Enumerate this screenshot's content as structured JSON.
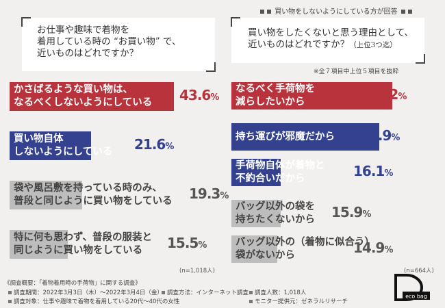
{
  "left": {
    "question_lines": [
      "お仕事や趣味で着物を",
      "着用している時の “お買い物” で、",
      "近いものはどれですか？"
    ],
    "n_label": "(n=1,018人)"
  },
  "right": {
    "banner": "買い物をしないようにしている方が回答",
    "question_lines": [
      "買い物をしたくないと思う理由として、",
      "近いものはどれですか？"
    ],
    "question_suffix": "（上位3つ迄）",
    "note": "※全７項目中上位５項目を抜粋",
    "n_label": "(n=664人)"
  },
  "colors": {
    "red": "#b8333b",
    "navy": "#34418f",
    "gray": "#bdbdbd",
    "bg": "#f1f0ee"
  },
  "chart_data": [
    {
      "type": "bar",
      "categories": [
        "かさばるような買い物は、なるべくしないようにしている",
        "買い物自体しないようにしている",
        "袋や風呂敷を持っている時のみ、普段と同じように買い物をしている",
        "特に何も思わず、普段の服装と同じように買い物をしている"
      ],
      "label_lines": [
        [
          "かさばるような買い物は、",
          "なるべくしないようにしている"
        ],
        [
          "買い物自体",
          "しないようにしている"
        ],
        [
          "袋や風呂敷を持っている時のみ、",
          "普段と同じように買い物をしている"
        ],
        [
          "特に何も思わず、普段の服装と",
          "同じように買い物をしている"
        ]
      ],
      "values": [
        43.6,
        21.6,
        19.3,
        15.5
      ],
      "value_labels": [
        "43.6",
        "21.6",
        "19.3",
        "15.5"
      ],
      "unit": "%",
      "bar_colors": [
        "#b8333b",
        "#34418f",
        "#bdbdbd",
        "#bdbdbd"
      ],
      "value_colors": [
        "#b8333b",
        "#34418f",
        "#555555",
        "#555555"
      ]
    },
    {
      "type": "bar",
      "categories": [
        "なるべく手荷物を減らしたいから",
        "持ち運びが邪魔だから",
        "手荷物自体が着物と不釣合いだから",
        "バッグ以外の袋を持ちたくないから",
        "バッグ以外の（着物に似合う）袋がないから"
      ],
      "label_lines": [
        [
          "なるべく手荷物を",
          "減らしたいから"
        ],
        [
          "持ち運びが邪魔だから"
        ],
        [
          "手荷物自体が着物と",
          "不釣合いだから"
        ],
        [
          "バッグ以外の袋を",
          "持ちたくないから"
        ],
        [
          "バッグ以外の（着物に似合う）",
          "袋がないから"
        ]
      ],
      "values": [
        52.2,
        47.9,
        16.1,
        15.9,
        14.9
      ],
      "value_labels": [
        "52.2",
        "47.9",
        "16.1",
        "15.9",
        "14.9"
      ],
      "unit": "%",
      "bar_colors": [
        "#b8333b",
        "#34418f",
        "#34418f",
        "#bdbdbd",
        "#bdbdbd"
      ],
      "value_colors": [
        "#b8333b",
        "#34418f",
        "#34418f",
        "#555555",
        "#555555"
      ]
    }
  ],
  "footer": {
    "title": "《調査概要：「着物着用時の手荷物」に関する調査》",
    "items": [
      "調査期間：2022年3月3日（木）〜2022年3月4日（金）",
      "調査方法：インターネット調査",
      "調査人数：1,018人",
      "調査対象：仕事や趣味で着物を着用している20代〜40代の女性",
      "モニター提供元：ゼネラルリサーチ"
    ]
  },
  "logo": {
    "text": "eco bag"
  }
}
